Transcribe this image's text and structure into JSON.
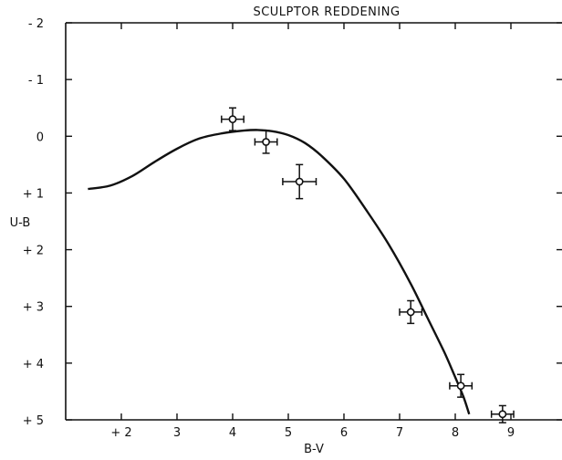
{
  "chart_data": {
    "type": "line",
    "title": "SCULPTOR REDDENING",
    "xlabel": "B-V",
    "ylabel": "U-B",
    "x_ticks": [
      {
        "value": 0.2,
        "label": "+ 2"
      },
      {
        "value": 0.3,
        "label": "3"
      },
      {
        "value": 0.4,
        "label": "4"
      },
      {
        "value": 0.5,
        "label": "5"
      },
      {
        "value": 0.6,
        "label": "6"
      },
      {
        "value": 0.7,
        "label": "7"
      },
      {
        "value": 0.8,
        "label": "8"
      },
      {
        "value": 0.9,
        "label": "9"
      }
    ],
    "y_ticks": [
      {
        "value": -0.2,
        "label": "- 2"
      },
      {
        "value": -0.1,
        "label": "- 1"
      },
      {
        "value": 0.0,
        "label": "0"
      },
      {
        "value": 0.1,
        "label": "+ 1"
      },
      {
        "value": 0.2,
        "label": "+ 2"
      },
      {
        "value": 0.3,
        "label": "+ 3"
      },
      {
        "value": 0.4,
        "label": "+ 4"
      },
      {
        "value": 0.5,
        "label": "+ 5"
      }
    ],
    "xlim": [
      0.1,
      1.0
    ],
    "ylim": [
      -0.2,
      0.5
    ],
    "y_inverted": true,
    "grid": false,
    "series": [
      {
        "kind": "curve",
        "x": [
          0.14,
          0.18,
          0.22,
          0.26,
          0.3,
          0.34,
          0.38,
          0.42,
          0.445,
          0.47,
          0.5,
          0.53,
          0.56,
          0.6,
          0.64,
          0.68,
          0.72,
          0.75,
          0.78,
          0.8,
          0.815,
          0.825
        ],
        "y": [
          0.093,
          0.087,
          0.07,
          0.045,
          0.022,
          0.004,
          -0.005,
          -0.01,
          -0.011,
          -0.009,
          -0.002,
          0.012,
          0.035,
          0.075,
          0.13,
          0.19,
          0.26,
          0.32,
          0.38,
          0.425,
          0.46,
          0.49
        ]
      },
      {
        "kind": "points_with_errors",
        "points": [
          {
            "x": 0.4,
            "y": -0.03,
            "xerr": 0.02,
            "yerr": 0.02
          },
          {
            "x": 0.46,
            "y": 0.01,
            "xerr": 0.02,
            "yerr": 0.02
          },
          {
            "x": 0.52,
            "y": 0.08,
            "xerr": 0.03,
            "yerr": 0.03
          },
          {
            "x": 0.72,
            "y": 0.31,
            "xerr": 0.02,
            "yerr": 0.02
          },
          {
            "x": 0.81,
            "y": 0.44,
            "xerr": 0.02,
            "yerr": 0.02
          },
          {
            "x": 0.885,
            "y": 0.49,
            "xerr": 0.02,
            "yerr": 0.015
          }
        ]
      }
    ]
  }
}
